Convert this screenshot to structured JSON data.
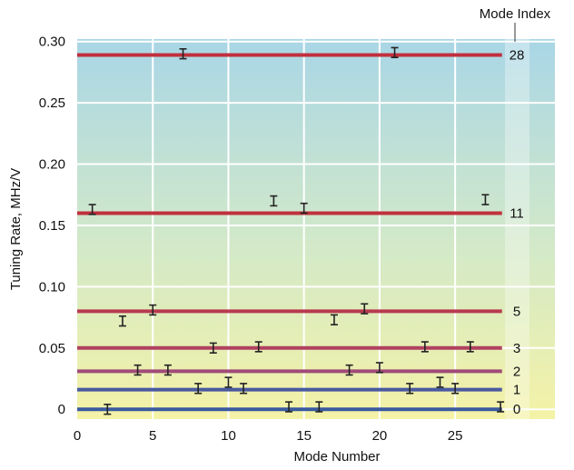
{
  "chart_data": {
    "type": "scatter",
    "title": "",
    "xlabel": "Mode Number",
    "ylabel": "Tuning Rate, MHz/V",
    "xlim": [
      0,
      31.6
    ],
    "ylim": [
      -0.008,
      0.302
    ],
    "xticks": [
      0,
      5,
      10,
      15,
      20,
      25
    ],
    "yticks": [
      0,
      0.05,
      0.1,
      0.15,
      0.2,
      0.25,
      0.3
    ],
    "ytick_labels": [
      "0",
      "0.05",
      "0.10",
      "0.15",
      "0.20",
      "0.25",
      "0.30"
    ],
    "grid": true,
    "legend_title": "Mode Index",
    "mode_lines": [
      {
        "index": "0",
        "value": 0.0,
        "color": "#3a5aa0"
      },
      {
        "index": "1",
        "value": 0.016,
        "color": "#4a5aa0"
      },
      {
        "index": "2",
        "value": 0.031,
        "color": "#a04a78"
      },
      {
        "index": "3",
        "value": 0.05,
        "color": "#b04060"
      },
      {
        "index": "5",
        "value": 0.08,
        "color": "#b83a50"
      },
      {
        "index": "11",
        "value": 0.16,
        "color": "#c0303c"
      },
      {
        "index": "28",
        "value": 0.289,
        "color": "#c0303c"
      }
    ],
    "points": [
      {
        "x": 2,
        "y": 0.0,
        "err": 0.004
      },
      {
        "x": 14,
        "y": 0.002,
        "err": 0.004
      },
      {
        "x": 16,
        "y": 0.002,
        "err": 0.004
      },
      {
        "x": 28,
        "y": 0.002,
        "err": 0.004
      },
      {
        "x": 8,
        "y": 0.017,
        "err": 0.004
      },
      {
        "x": 10,
        "y": 0.022,
        "err": 0.004
      },
      {
        "x": 11,
        "y": 0.017,
        "err": 0.004
      },
      {
        "x": 22,
        "y": 0.017,
        "err": 0.004
      },
      {
        "x": 24,
        "y": 0.022,
        "err": 0.004
      },
      {
        "x": 25,
        "y": 0.017,
        "err": 0.004
      },
      {
        "x": 4,
        "y": 0.032,
        "err": 0.004
      },
      {
        "x": 6,
        "y": 0.032,
        "err": 0.004
      },
      {
        "x": 18,
        "y": 0.032,
        "err": 0.004
      },
      {
        "x": 20,
        "y": 0.034,
        "err": 0.004
      },
      {
        "x": 9,
        "y": 0.05,
        "err": 0.004
      },
      {
        "x": 12,
        "y": 0.051,
        "err": 0.004
      },
      {
        "x": 23,
        "y": 0.051,
        "err": 0.004
      },
      {
        "x": 26,
        "y": 0.051,
        "err": 0.004
      },
      {
        "x": 3,
        "y": 0.072,
        "err": 0.004
      },
      {
        "x": 5,
        "y": 0.081,
        "err": 0.004
      },
      {
        "x": 17,
        "y": 0.073,
        "err": 0.004
      },
      {
        "x": 19,
        "y": 0.082,
        "err": 0.004
      },
      {
        "x": 1,
        "y": 0.163,
        "err": 0.004
      },
      {
        "x": 13,
        "y": 0.17,
        "err": 0.004
      },
      {
        "x": 15,
        "y": 0.164,
        "err": 0.004
      },
      {
        "x": 27,
        "y": 0.171,
        "err": 0.004
      },
      {
        "x": 7,
        "y": 0.29,
        "err": 0.004
      },
      {
        "x": 21,
        "y": 0.291,
        "err": 0.004
      }
    ]
  }
}
